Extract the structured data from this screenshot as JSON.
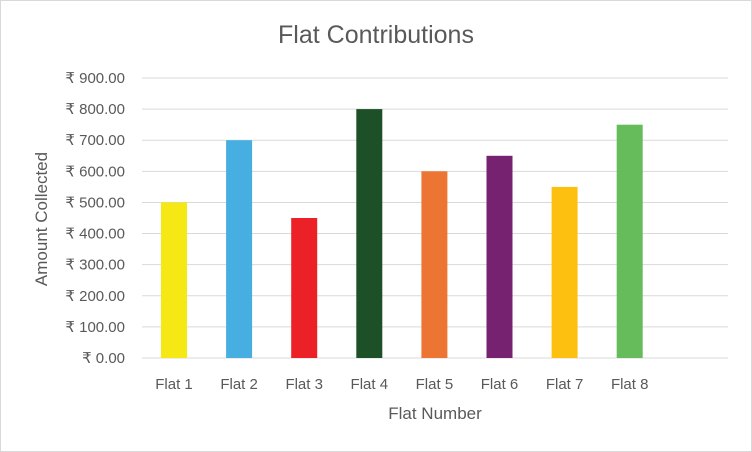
{
  "chart_data": {
    "type": "bar",
    "title": "Flat Contributions",
    "xlabel": "Flat Number",
    "ylabel": "Amount Collected",
    "categories": [
      "Flat 1",
      "Flat 2",
      "Flat 3",
      "Flat 4",
      "Flat 5",
      "Flat 6",
      "Flat 7",
      "Flat 8"
    ],
    "values": [
      500,
      700,
      450,
      800,
      600,
      650,
      550,
      750
    ],
    "bar_colors": [
      "#f6e815",
      "#46aee1",
      "#ec2027",
      "#1e5027",
      "#ed7533",
      "#772271",
      "#fdc010",
      "#66bc5b"
    ],
    "ylim": [
      0,
      900
    ],
    "yticks": [
      0,
      100,
      200,
      300,
      400,
      500,
      600,
      700,
      800,
      900
    ],
    "ytick_labels": [
      "₹ 0.00",
      "₹ 100.00",
      "₹ 200.00",
      "₹ 300.00",
      "₹ 400.00",
      "₹ 500.00",
      "₹ 600.00",
      "₹ 700.00",
      "₹ 800.00",
      "₹ 900.00"
    ],
    "grid": true,
    "legend": "none"
  }
}
